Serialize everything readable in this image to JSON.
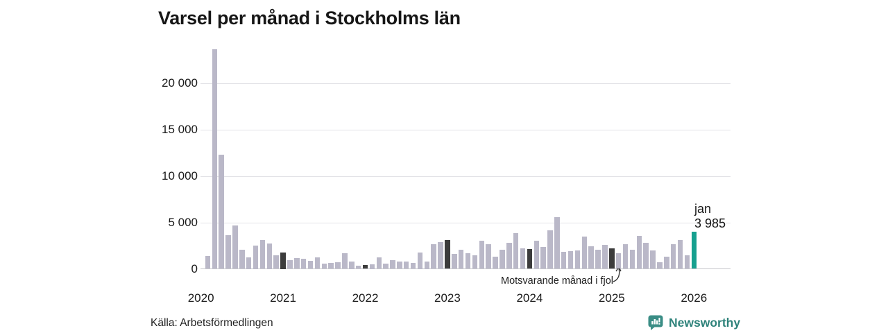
{
  "header": {
    "title": "Varsel per månad i Stockholms län"
  },
  "annotation": {
    "text": "Motsvarande månad i fjol"
  },
  "footer": {
    "source": "Källa: Arbetsförmedlingen",
    "brand": "Newsworthy"
  },
  "colors": {
    "bar": "#bab8c8",
    "january_bar": "#3c3c3c",
    "current_bar": "#16a08f",
    "gridline": "#e3e3e7",
    "brand_teal": "#2f837b"
  },
  "chart_data": {
    "type": "bar",
    "title": "Varsel per månad i Stockholms län",
    "xlabel": "",
    "ylabel": "",
    "ylim": [
      0,
      24000
    ],
    "grid": true,
    "yticks": [
      0,
      5000,
      10000,
      15000,
      20000
    ],
    "ytick_labels": [
      "0",
      "5 000",
      "10 000",
      "15 000",
      "20 000"
    ],
    "year_labels": [
      "2020",
      "2021",
      "2022",
      "2023",
      "2024",
      "2025",
      "2026"
    ],
    "x": [
      "2020-02",
      "2020-03",
      "2020-04",
      "2020-05",
      "2020-06",
      "2020-07",
      "2020-08",
      "2020-09",
      "2020-10",
      "2020-11",
      "2020-12",
      "2021-01",
      "2021-02",
      "2021-03",
      "2021-04",
      "2021-05",
      "2021-06",
      "2021-07",
      "2021-08",
      "2021-09",
      "2021-10",
      "2021-11",
      "2021-12",
      "2022-01",
      "2022-02",
      "2022-03",
      "2022-04",
      "2022-05",
      "2022-06",
      "2022-07",
      "2022-08",
      "2022-09",
      "2022-10",
      "2022-11",
      "2022-12",
      "2023-01",
      "2023-02",
      "2023-03",
      "2023-04",
      "2023-05",
      "2023-06",
      "2023-07",
      "2023-08",
      "2023-09",
      "2023-10",
      "2023-11",
      "2023-12",
      "2024-01",
      "2024-02",
      "2024-03",
      "2024-04",
      "2024-05",
      "2024-06",
      "2024-07",
      "2024-08",
      "2024-09",
      "2024-10",
      "2024-11",
      "2024-12",
      "2025-01",
      "2025-02",
      "2025-03",
      "2025-04",
      "2025-05",
      "2025-06",
      "2025-07",
      "2025-08",
      "2025-09",
      "2025-10",
      "2025-11",
      "2025-12",
      "2026-01"
    ],
    "values": [
      1400,
      23650,
      12300,
      3600,
      4700,
      2050,
      1250,
      2500,
      3100,
      2750,
      1450,
      1750,
      900,
      1150,
      1100,
      850,
      1200,
      550,
      650,
      720,
      1670,
      750,
      300,
      400,
      500,
      1270,
      550,
      950,
      800,
      770,
      600,
      1750,
      750,
      2670,
      2890,
      3100,
      1600,
      2040,
      1700,
      1470,
      3050,
      2680,
      1340,
      2040,
      2840,
      3840,
      2240,
      2110,
      3040,
      2370,
      4150,
      5550,
      1800,
      1910,
      2010,
      3450,
      2420,
      2090,
      2550,
      2170,
      1680,
      2630,
      2060,
      3530,
      2840,
      2010,
      720,
      1340,
      2630,
      3140,
      1470,
      3985
    ],
    "highlight_rule": "january bars dark; last bar (current month) teal",
    "last_point_label": {
      "month": "jan",
      "value": "3 985"
    },
    "annotation": "Motsvarande månad i fjol",
    "legend": []
  }
}
